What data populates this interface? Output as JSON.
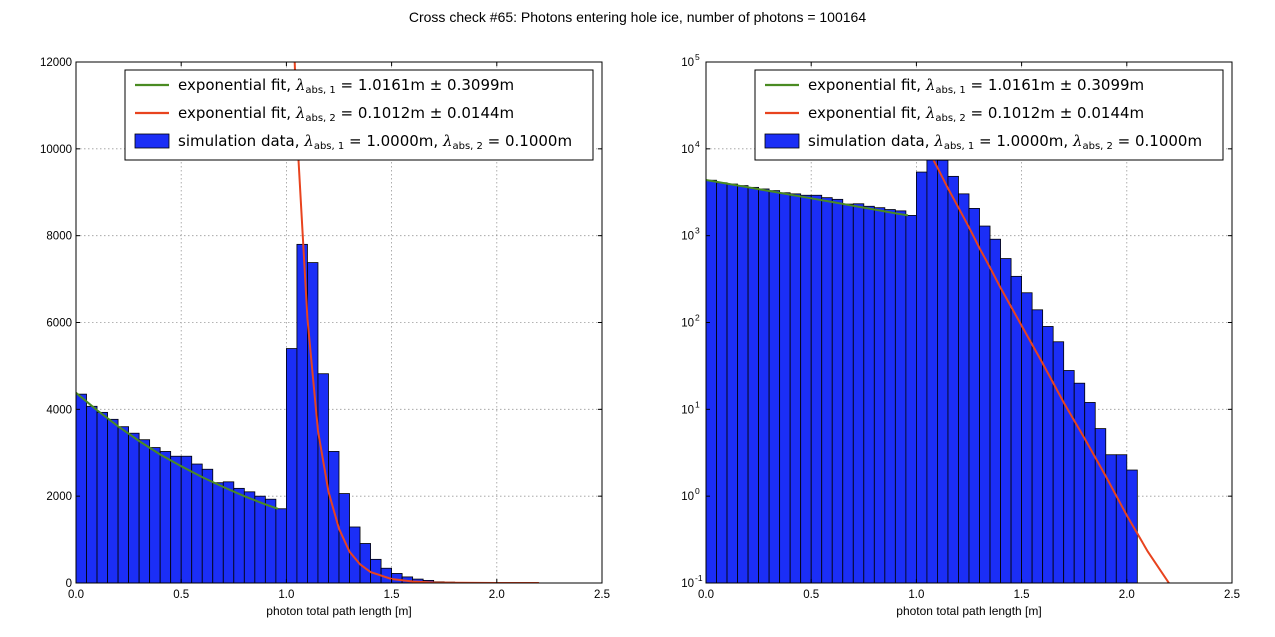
{
  "figure_title": "Cross check #65: Photons entering hole ice, number of photons = 100164",
  "colors": {
    "bar": "#1b2ef6",
    "fit1": "#4a8b22",
    "fit2": "#e8431e",
    "grid": "#9a9a9a"
  },
  "legend": [
    {
      "type": "line",
      "color_key": "fit1",
      "prefix": "exponential fit, ",
      "sub": "abs, 1",
      "rest": " = 1.0161m ± 0.3099m"
    },
    {
      "type": "line",
      "color_key": "fit2",
      "prefix": "exponential fit, ",
      "sub": "abs, 2",
      "rest": " = 0.1012m ± 0.0144m"
    },
    {
      "type": "patch",
      "color_key": "bar",
      "prefix": "simulation data, ",
      "sub": "abs, 1",
      "rest": " = 1.0000m, ",
      "sub2": "abs, 2",
      "rest2": " = 0.1000m"
    }
  ],
  "chart_data": [
    {
      "type": "bar",
      "scale": "linear",
      "xlabel": "photon total path length [m]",
      "xlim": [
        0.0,
        2.5
      ],
      "ylim": [
        0,
        12000
      ],
      "xticks": [
        "0.0",
        "0.5",
        "1.0",
        "1.5",
        "2.0",
        "2.5"
      ],
      "yticks": [
        "0",
        "2000",
        "4000",
        "6000",
        "8000",
        "10000",
        "12000"
      ],
      "grid": true,
      "legend_position": "upper right"
    },
    {
      "type": "bar",
      "scale": "log",
      "xlabel": "photon total path length [m]",
      "xlim": [
        0.0,
        2.5
      ],
      "ylim": [
        0.1,
        100000
      ],
      "xticks": [
        "0.0",
        "0.5",
        "1.0",
        "1.5",
        "2.0",
        "2.5"
      ],
      "yticks": [
        "10",
        "10",
        "10",
        "10",
        "10",
        "10",
        "10"
      ],
      "ytick_exponents": [
        "-1",
        "0",
        "1",
        "2",
        "3",
        "4",
        "5"
      ],
      "grid": true,
      "legend_position": "upper right"
    }
  ],
  "histogram": {
    "bin_width": 0.05,
    "bin_starts": [
      0.0,
      0.05,
      0.1,
      0.15,
      0.2,
      0.25,
      0.3,
      0.35,
      0.4,
      0.45,
      0.5,
      0.55,
      0.6,
      0.65,
      0.7,
      0.75,
      0.8,
      0.85,
      0.9,
      0.95,
      1.0,
      1.05,
      1.1,
      1.15,
      1.2,
      1.25,
      1.3,
      1.35,
      1.4,
      1.45,
      1.5,
      1.55,
      1.6,
      1.65,
      1.7,
      1.75,
      1.8,
      1.85,
      1.9,
      1.95,
      2.0
    ],
    "counts": [
      4350,
      4070,
      3930,
      3770,
      3600,
      3450,
      3300,
      3120,
      3030,
      2920,
      2920,
      2740,
      2620,
      2310,
      2330,
      2180,
      2100,
      2000,
      1930,
      1710,
      5400,
      7800,
      7380,
      4820,
      3030,
      2060,
      1290,
      910,
      545,
      340,
      220,
      140,
      90,
      60,
      28,
      20,
      12,
      6,
      3,
      3,
      2
    ]
  },
  "fits": [
    {
      "name": "exponential fit, abs 1",
      "color_key": "fit1",
      "x": [
        0.0,
        0.1,
        0.2,
        0.3,
        0.4,
        0.5,
        0.6,
        0.7,
        0.8,
        0.9,
        0.96
      ],
      "y": [
        4380,
        3980,
        3610,
        3270,
        2960,
        2690,
        2440,
        2210,
        2000,
        1810,
        1710
      ]
    },
    {
      "name": "exponential fit, abs 2",
      "color_key": "fit2",
      "x": [
        1.02,
        1.05,
        1.1,
        1.15,
        1.2,
        1.25,
        1.3,
        1.35,
        1.4,
        1.5,
        1.6,
        1.7,
        1.8,
        1.9,
        2.0,
        2.1,
        2.2
      ],
      "y": [
        15000,
        10400,
        6100,
        3500,
        2100,
        1250,
        720,
        430,
        250,
        92,
        34,
        12,
        4.6,
        1.7,
        0.6,
        0.23,
        0.1
      ]
    }
  ]
}
